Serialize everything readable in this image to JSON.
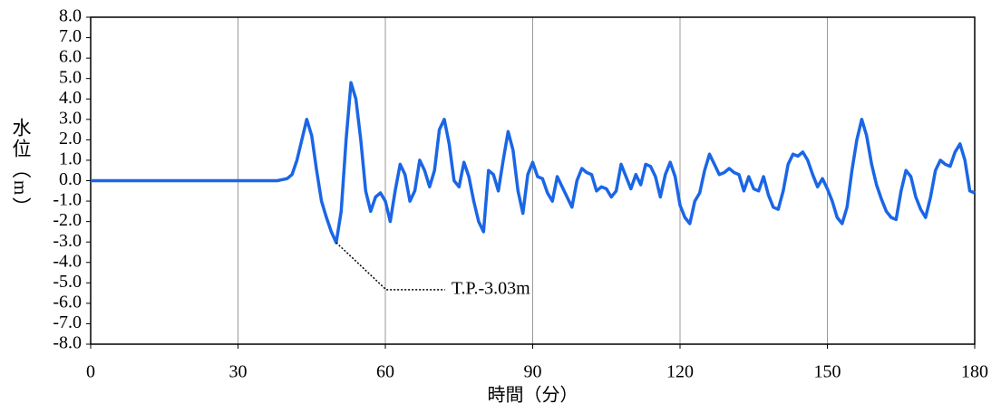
{
  "chart_data": {
    "type": "line",
    "x_label": "時間（分）",
    "y_label": "水位（m）",
    "xlim": [
      0,
      180
    ],
    "xticks": [
      0,
      30,
      60,
      90,
      120,
      150,
      180
    ],
    "ylim": [
      -8,
      8
    ],
    "yticks": [
      {
        "value": 8,
        "label": "8.0"
      },
      {
        "value": 7,
        "label": "7.0"
      },
      {
        "value": 6,
        "label": "6.0"
      },
      {
        "value": 5,
        "label": "5.0"
      },
      {
        "value": 4,
        "label": "4.0"
      },
      {
        "value": 3,
        "label": "3.0"
      },
      {
        "value": 2,
        "label": "2.0"
      },
      {
        "value": 1,
        "label": "1.0"
      },
      {
        "value": 0,
        "label": "0.0"
      },
      {
        "value": -1,
        "label": "-1.0"
      },
      {
        "value": -2,
        "label": "-2.0"
      },
      {
        "value": -3,
        "label": "-3.0"
      },
      {
        "value": -4,
        "label": "-4.0"
      },
      {
        "value": -5,
        "label": "-5.0"
      },
      {
        "value": -6,
        "label": "-6.0"
      },
      {
        "value": -7,
        "label": "-7.0"
      },
      {
        "value": -8,
        "label": "-8.0"
      }
    ],
    "grid": "x",
    "annotation": {
      "text": "T.P.-3.03m",
      "x": 50,
      "y": -3.03
    },
    "series": [
      {
        "color": "#1a66e6",
        "x": [
          0,
          10,
          20,
          30,
          36,
          38,
          40,
          41,
          42,
          43,
          44,
          45,
          46,
          47,
          48,
          49,
          50,
          51,
          52,
          53,
          54,
          55,
          56,
          57,
          58,
          59,
          60,
          61,
          62,
          63,
          64,
          65,
          66,
          67,
          68,
          69,
          70,
          71,
          72,
          73,
          74,
          75,
          76,
          77,
          78,
          79,
          80,
          81,
          82,
          83,
          84,
          85,
          86,
          87,
          88,
          89,
          90,
          91,
          92,
          93,
          94,
          95,
          96,
          97,
          98,
          99,
          100,
          101,
          102,
          103,
          104,
          105,
          106,
          107,
          108,
          109,
          110,
          111,
          112,
          113,
          114,
          115,
          116,
          117,
          118,
          119,
          120,
          121,
          122,
          123,
          124,
          125,
          126,
          127,
          128,
          129,
          130,
          131,
          132,
          133,
          134,
          135,
          136,
          137,
          138,
          139,
          140,
          141,
          142,
          143,
          144,
          145,
          146,
          147,
          148,
          149,
          150,
          151,
          152,
          153,
          154,
          155,
          156,
          157,
          158,
          159,
          160,
          161,
          162,
          163,
          164,
          165,
          166,
          167,
          168,
          169,
          170,
          171,
          172,
          173,
          174,
          175,
          176,
          177,
          178,
          179,
          180
        ],
        "values": [
          0,
          0,
          0,
          0,
          0,
          0,
          0.1,
          0.3,
          1.0,
          2.0,
          3.0,
          2.2,
          0.5,
          -1.0,
          -1.8,
          -2.5,
          -3.03,
          -1.5,
          2.0,
          4.8,
          4.0,
          2.0,
          -0.5,
          -1.5,
          -0.8,
          -0.6,
          -1.0,
          -2.0,
          -0.5,
          0.8,
          0.3,
          -1.0,
          -0.5,
          1.0,
          0.5,
          -0.3,
          0.5,
          2.5,
          3.0,
          1.8,
          0,
          -0.3,
          0.9,
          0.2,
          -1.0,
          -2.0,
          -2.5,
          0.5,
          0.3,
          -0.5,
          1.0,
          2.4,
          1.5,
          -0.5,
          -1.6,
          0.3,
          0.9,
          0.2,
          0.1,
          -0.6,
          -1.0,
          0.2,
          -0.3,
          -0.8,
          -1.3,
          0,
          0.6,
          0.4,
          0.3,
          -0.5,
          -0.3,
          -0.4,
          -0.8,
          -0.5,
          0.8,
          0.2,
          -0.4,
          0.3,
          -0.2,
          0.8,
          0.7,
          0.2,
          -0.8,
          0.3,
          0.9,
          0.2,
          -1.2,
          -1.8,
          -2.1,
          -1.0,
          -0.6,
          0.5,
          1.3,
          0.8,
          0.3,
          0.4,
          0.6,
          0.4,
          0.3,
          -0.5,
          0.2,
          -0.4,
          -0.5,
          0.2,
          -0.7,
          -1.3,
          -1.4,
          -0.5,
          0.8,
          1.3,
          1.2,
          1.4,
          1.0,
          0.3,
          -0.3,
          0.1,
          -0.4,
          -1.0,
          -1.8,
          -2.1,
          -1.3,
          0.5,
          2.0,
          3.0,
          2.2,
          0.8,
          -0.2,
          -0.9,
          -1.5,
          -1.8,
          -1.9,
          -0.5,
          0.5,
          0.2,
          -0.8,
          -1.4,
          -1.8,
          -0.8,
          0.5,
          1.0,
          0.8,
          0.7,
          1.4,
          1.8,
          1.0,
          -0.5,
          -0.6
        ]
      }
    ]
  }
}
